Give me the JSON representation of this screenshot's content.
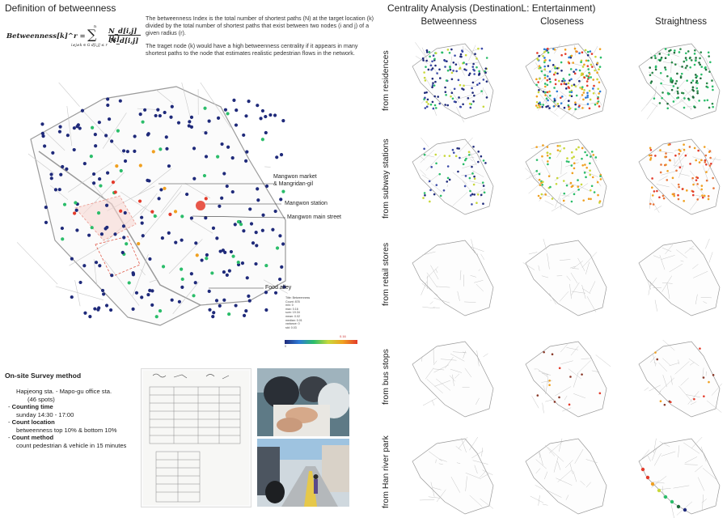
{
  "left": {
    "title": "Definition of betweenness",
    "formula": {
      "lhs": "Betweenness[k]^r =",
      "sum_upper": "n",
      "sum_lower": "i≠j≠k ∈ G d[i,j] ≤ r",
      "numerator": "N_d[i,j][k]",
      "denominator": "N_d[i,j]"
    },
    "description": [
      "The betweenness Index is the total number of shortest paths (N) at the target location (k) divided by the total number of shortest paths that exist between two nodes (i and j) of a given radius (r).",
      "The traget node (k) would have a high betweenness centrality if it appears in many shortest paths to the node that estimates realistic pedestrian flows in the network."
    ],
    "callouts": {
      "market": "Mangwon market\n& Mangridan-gil",
      "station": "Mangwon station",
      "main_street": "Mangwon main street",
      "food_alley": "Food alley"
    },
    "stats": [
      "Title: Betweenness",
      "Count: 878",
      "min: 0",
      "max: 0.16",
      "sum: 19.34",
      "mean: 0.02",
      "median: 0.01",
      "variance: 0",
      "std: 0.03"
    ],
    "legend": {
      "min": "0",
      "max": "0.16"
    }
  },
  "survey": {
    "title": "On-site Survey method",
    "route": "Hapjeong sta. - Mapo-gu office sta.",
    "spots": "(46 spots)",
    "counting_time_label": "Counting time",
    "counting_time": "sunday 14:30 - 17:00",
    "count_location_label": "Count location",
    "count_location": "betweenness top 10% & bottom 10%",
    "count_method_label": "Count method",
    "count_method": "count pedestrian & vehicle in 15 minutes"
  },
  "right": {
    "title": "Centrality Analysis (DestinationL: Entertainment)",
    "columns": [
      "Betweenness",
      "Closeness",
      "Straightness"
    ],
    "rows": [
      "from residences",
      "from subway stations",
      "from retail stores",
      "from bus stops",
      "from Han river park"
    ]
  },
  "colors": {
    "low": "#1f2a7a",
    "mid": "#2bbd6a",
    "high": "#e33b2b",
    "orange": "#f0a020",
    "street": "#bdbdbd"
  }
}
